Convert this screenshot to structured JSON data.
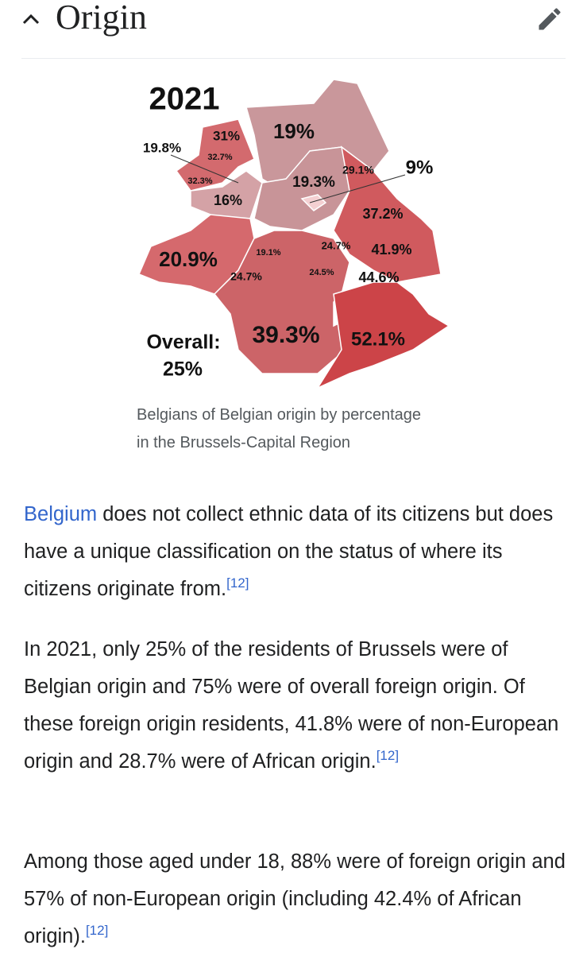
{
  "header": {
    "title": "Origin"
  },
  "figure": {
    "map_title": "2021",
    "labels": [
      "31%",
      "19%",
      "19.8%",
      "32.7%",
      "29.1%",
      "9%",
      "32.3%",
      "19.3%",
      "16%",
      "37.2%",
      "24.7%",
      "41.9%",
      "19.1%",
      "20.9%",
      "24.5%",
      "44.6%",
      "24.7%",
      "39.3%",
      "52.1%"
    ],
    "overall_label": "Overall:",
    "overall_value": "25%",
    "caption": "Belgians of Belgian origin by percentage in the Brussels-Capital Region"
  },
  "paragraphs": [
    {
      "link": "Belgium",
      "text": " does not collect ethnic data of its citizens but does have a unique classification on the status of where its citizens originate from.",
      "ref": "[12]"
    },
    {
      "text": "In 2021, only 25% of the residents of Brussels were of Belgian origin and 75% were of overall foreign origin. Of these foreign origin residents, 41.8% were of non-European origin and 28.7% were of African origin.",
      "ref": "[12]"
    },
    {
      "text": "Among those aged under 18, 88% were of foreign origin and 57% of non-European origin (including 42.4% of African origin).",
      "ref": "[12]"
    }
  ]
}
